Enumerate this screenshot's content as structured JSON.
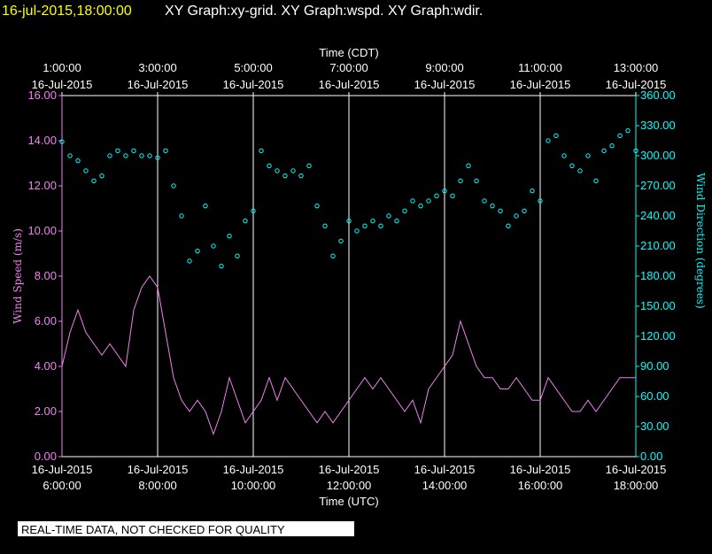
{
  "header": {
    "timestamp": "16-jul-2015,18:00:00",
    "title": "XY Graph:xy-grid.  XY Graph:wspd.  XY Graph:wdir."
  },
  "chart_data": {
    "type": "line",
    "xlabel": "Time (UTC)",
    "x2label": "Time (CDT)",
    "ylabel": "Wind Speed (m/s)",
    "y2label": "Wind Direction (degrees)",
    "xlim": [
      "06:00",
      "18:00"
    ],
    "xticks": [
      {
        "value": "06:00",
        "label": "6:00:00",
        "date": "16-Jul-2015"
      },
      {
        "value": "08:00",
        "label": "8:00:00",
        "date": "16-Jul-2015"
      },
      {
        "value": "10:00",
        "label": "10:00:00",
        "date": "16-Jul-2015"
      },
      {
        "value": "12:00",
        "label": "12:00:00",
        "date": "16-Jul-2015"
      },
      {
        "value": "14:00",
        "label": "14:00:00",
        "date": "16-Jul-2015"
      },
      {
        "value": "16:00",
        "label": "16:00:00",
        "date": "16-Jul-2015"
      },
      {
        "value": "18:00",
        "label": "18:00:00",
        "date": "16-Jul-2015"
      }
    ],
    "x2ticks": [
      {
        "value": "06:00",
        "label": "1:00:00",
        "date": "16-Jul-2015"
      },
      {
        "value": "08:00",
        "label": "3:00:00",
        "date": "16-Jul-2015"
      },
      {
        "value": "10:00",
        "label": "5:00:00",
        "date": "16-Jul-2015"
      },
      {
        "value": "12:00",
        "label": "7:00:00",
        "date": "16-Jul-2015"
      },
      {
        "value": "14:00",
        "label": "9:00:00",
        "date": "16-Jul-2015"
      },
      {
        "value": "16:00",
        "label": "11:00:00",
        "date": "16-Jul-2015"
      },
      {
        "value": "18:00",
        "label": "13:00:00",
        "date": "16-Jul-2015"
      }
    ],
    "ylim": [
      0,
      16
    ],
    "yticks": [
      {
        "value": 0,
        "label": "0.00"
      },
      {
        "value": 2,
        "label": "2.00"
      },
      {
        "value": 4,
        "label": "4.00"
      },
      {
        "value": 6,
        "label": "6.00"
      },
      {
        "value": 8,
        "label": "8.00"
      },
      {
        "value": 10,
        "label": "10.00"
      },
      {
        "value": 12,
        "label": "12.00"
      },
      {
        "value": 14,
        "label": "14.00"
      },
      {
        "value": 16,
        "label": "16.00"
      }
    ],
    "y2lim": [
      0,
      360
    ],
    "y2ticks": [
      {
        "value": 0,
        "label": "0.00"
      },
      {
        "value": 30,
        "label": "30.00"
      },
      {
        "value": 60,
        "label": "60.00"
      },
      {
        "value": 90,
        "label": "90.00"
      },
      {
        "value": 120,
        "label": "120.00"
      },
      {
        "value": 150,
        "label": "150.00"
      },
      {
        "value": 180,
        "label": "180.00"
      },
      {
        "value": 210,
        "label": "210.00"
      },
      {
        "value": 240,
        "label": "240.00"
      },
      {
        "value": 270,
        "label": "270.00"
      },
      {
        "value": 300,
        "label": "300.00"
      },
      {
        "value": 330,
        "label": "330.00"
      },
      {
        "value": 360,
        "label": "360.00"
      }
    ],
    "grid": true,
    "x": [
      "06:00",
      "06:10",
      "06:20",
      "06:30",
      "06:40",
      "06:50",
      "07:00",
      "07:10",
      "07:20",
      "07:30",
      "07:40",
      "07:50",
      "08:00",
      "08:10",
      "08:20",
      "08:30",
      "08:40",
      "08:50",
      "09:00",
      "09:10",
      "09:20",
      "09:30",
      "09:40",
      "09:50",
      "10:00",
      "10:10",
      "10:20",
      "10:30",
      "10:40",
      "10:50",
      "11:00",
      "11:10",
      "11:20",
      "11:30",
      "11:40",
      "11:50",
      "12:00",
      "12:10",
      "12:20",
      "12:30",
      "12:40",
      "12:50",
      "13:00",
      "13:10",
      "13:20",
      "13:30",
      "13:40",
      "13:50",
      "14:00",
      "14:10",
      "14:20",
      "14:30",
      "14:40",
      "14:50",
      "15:00",
      "15:10",
      "15:20",
      "15:30",
      "15:40",
      "15:50",
      "16:00",
      "16:10",
      "16:20",
      "16:30",
      "16:40",
      "16:50",
      "17:00",
      "17:10",
      "17:20",
      "17:30",
      "17:40",
      "17:50",
      "18:00"
    ],
    "series": [
      {
        "name": "wspd",
        "color": "#ee82ee",
        "style": "line",
        "values": [
          4.0,
          5.5,
          6.5,
          5.5,
          5.0,
          4.5,
          5.0,
          4.5,
          4.0,
          6.5,
          7.5,
          8.0,
          7.5,
          5.5,
          3.5,
          2.5,
          2.0,
          2.5,
          2.0,
          1.0,
          2.0,
          3.5,
          2.5,
          1.5,
          2.0,
          2.5,
          3.5,
          2.5,
          3.5,
          3.0,
          2.5,
          2.0,
          1.5,
          2.0,
          1.5,
          2.0,
          2.5,
          3.0,
          3.5,
          3.0,
          3.5,
          3.0,
          2.5,
          2.0,
          2.5,
          1.5,
          3.0,
          3.5,
          4.0,
          4.5,
          6.0,
          5.0,
          4.0,
          3.5,
          3.5,
          3.0,
          3.0,
          3.5,
          3.0,
          2.5,
          2.5,
          3.5,
          3.0,
          2.5,
          2.0,
          2.0,
          2.5,
          2.0,
          2.5,
          3.0,
          3.5,
          3.5,
          3.5
        ]
      },
      {
        "name": "wdir",
        "color": "#00ffff",
        "style": "markers",
        "axis": "y2",
        "values": [
          314,
          300,
          295,
          285,
          275,
          280,
          300,
          305,
          300,
          305,
          300,
          300,
          298,
          305,
          270,
          240,
          195,
          205,
          250,
          210,
          190,
          220,
          200,
          235,
          245,
          305,
          290,
          285,
          280,
          285,
          280,
          290,
          250,
          230,
          200,
          215,
          235,
          225,
          230,
          235,
          230,
          240,
          235,
          245,
          255,
          250,
          255,
          260,
          265,
          260,
          275,
          290,
          275,
          255,
          250,
          245,
          230,
          240,
          245,
          265,
          255,
          315,
          320,
          300,
          290,
          285,
          300,
          275,
          305,
          310,
          320,
          325,
          305
        ]
      }
    ]
  },
  "footer": {
    "note": "REAL-TIME DATA, NOT CHECKED FOR QUALITY"
  }
}
